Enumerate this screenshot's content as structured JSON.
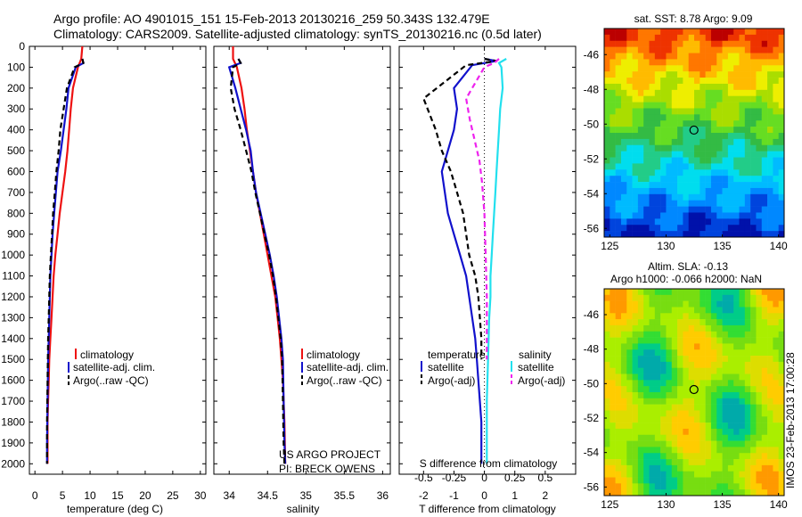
{
  "header": {
    "line1": "Argo profile: AO 4901015_151 15-Feb-2013 20130216_259 50.343S 132.479E",
    "line2": "Climatology: CARS2009. Satellite-adjusted climatology: synTS_20130216.nc (0.5d later)"
  },
  "colors": {
    "climatology": "#ee1111",
    "satellite": "#1111cc",
    "argo": "#000000",
    "sat_salinity": "#22e0ee",
    "argo_salinity": "#ee22ee"
  },
  "chart_data": [
    {
      "type": "line",
      "panel": "temperature",
      "xlabel": "temperature (deg C)",
      "xlim": [
        -1,
        31
      ],
      "xticks": [
        0,
        5,
        10,
        15,
        20,
        25,
        30
      ],
      "ylim": [
        2050,
        0
      ],
      "yticks": [
        0,
        100,
        200,
        300,
        400,
        500,
        600,
        700,
        800,
        900,
        1000,
        1100,
        1200,
        1300,
        1400,
        1500,
        1600,
        1700,
        1800,
        1900,
        2000
      ],
      "legend": [
        "climatology",
        "satellite-adj. clim.",
        "Argo(..raw -QC)"
      ],
      "series": [
        {
          "name": "climatology",
          "x": [
            8.6,
            8.4,
            7.8,
            6.9,
            6.5,
            6.2,
            5.9,
            5.5,
            5.0,
            4.5,
            4.1,
            3.7,
            3.4,
            3.2,
            3.0,
            2.8,
            2.6,
            2.5,
            2.4,
            2.3,
            2.3
          ],
          "y": [
            0,
            60,
            100,
            200,
            300,
            400,
            500,
            600,
            700,
            800,
            900,
            1000,
            1100,
            1200,
            1300,
            1400,
            1500,
            1600,
            1700,
            1800,
            2000
          ]
        },
        {
          "name": "satellite-adj. clim.",
          "x": [
            8.6,
            8.8,
            7.4,
            6.1,
            5.7,
            5.2,
            4.7,
            4.1,
            3.8,
            3.5,
            3.2,
            3.0,
            2.8,
            2.7,
            2.6,
            2.5,
            2.4,
            2.3,
            2.2,
            2.2
          ],
          "y": [
            60,
            80,
            100,
            200,
            300,
            400,
            500,
            600,
            700,
            800,
            900,
            1000,
            1100,
            1200,
            1300,
            1400,
            1500,
            1700,
            1900,
            2000
          ]
        },
        {
          "name": "Argo(..raw -QC)",
          "x": [
            8.6,
            8.8,
            7.2,
            5.8,
            5.2,
            4.6,
            4.3,
            3.9,
            3.6,
            3.3,
            3.1,
            2.9,
            2.7,
            2.6,
            2.5,
            2.4,
            2.3,
            2.2,
            2.2
          ],
          "y": [
            60,
            80,
            100,
            200,
            300,
            400,
            500,
            600,
            700,
            800,
            900,
            1000,
            1100,
            1200,
            1300,
            1400,
            1600,
            1800,
            2000
          ]
        }
      ]
    },
    {
      "type": "line",
      "panel": "salinity",
      "xlabel": "salinity",
      "xlim": [
        33.8,
        36.1
      ],
      "xticks": [
        34,
        34.5,
        35,
        35.5,
        36
      ],
      "ylim": [
        2050,
        0
      ],
      "legend": [
        "climatology",
        "satellite-adj. clim.",
        "Argo(..raw -QC)"
      ],
      "annotation": [
        "US ARGO PROJECT",
        "PI: BRECK OWENS"
      ],
      "series": [
        {
          "name": "climatology",
          "x": [
            34.05,
            34.05,
            34.1,
            34.16,
            34.2,
            34.23,
            34.27,
            34.31,
            34.35,
            34.4,
            34.45,
            34.5,
            34.55,
            34.6,
            34.63,
            34.66,
            34.68,
            34.7,
            34.71,
            34.72,
            34.73
          ],
          "y": [
            0,
            60,
            100,
            200,
            300,
            400,
            500,
            600,
            700,
            800,
            900,
            1000,
            1100,
            1200,
            1300,
            1400,
            1500,
            1600,
            1700,
            1800,
            2000
          ]
        },
        {
          "name": "satellite-adj. clim.",
          "x": [
            34.12,
            34.15,
            34.0,
            34.08,
            34.15,
            34.22,
            34.28,
            34.31,
            34.35,
            34.41,
            34.47,
            34.53,
            34.58,
            34.62,
            34.65,
            34.68,
            34.7,
            34.71,
            34.72,
            34.73
          ],
          "y": [
            60,
            80,
            100,
            200,
            300,
            400,
            500,
            600,
            700,
            800,
            900,
            1000,
            1100,
            1200,
            1300,
            1400,
            1500,
            1700,
            1900,
            2000
          ]
        },
        {
          "name": "Argo(..raw -QC)",
          "x": [
            34.12,
            34.15,
            34.05,
            34.02,
            34.07,
            34.15,
            34.22,
            34.29,
            34.34,
            34.4,
            34.46,
            34.52,
            34.57,
            34.61,
            34.64,
            34.67,
            34.69,
            34.7,
            34.71,
            34.72
          ],
          "y": [
            60,
            80,
            100,
            200,
            300,
            400,
            500,
            600,
            700,
            800,
            900,
            1000,
            1100,
            1200,
            1300,
            1400,
            1500,
            1700,
            1900,
            2000
          ]
        }
      ]
    },
    {
      "type": "line",
      "panel": "difference",
      "xlabel": "T difference from climatology",
      "xlabel_top": "S difference from climatology",
      "xlim": [
        -2.8,
        3.0
      ],
      "xticks": [
        -2,
        -1,
        0,
        1,
        2
      ],
      "xticks_s": [
        -0.5,
        -0.25,
        0,
        0.25,
        0.5
      ],
      "xticklabels_s": [
        "-0.5",
        "-0.25",
        "0",
        "0.25",
        "0.5"
      ],
      "ylim": [
        2050,
        0
      ],
      "legend_temperature": {
        "heading": "temperature",
        "items": [
          "satellite",
          "Argo(-adj)"
        ]
      },
      "legend_salinity": {
        "heading": "salinity",
        "items": [
          "satellite",
          "Argo(-adj)"
        ]
      },
      "series": [
        {
          "name": "satellite",
          "group": "temperature",
          "x": [
            0.0,
            0.4,
            -0.4,
            -1.0,
            -0.9,
            -1.0,
            -1.2,
            -1.4,
            -1.3,
            -1.2,
            -1.0,
            -0.8,
            -0.6,
            -0.5,
            -0.4,
            -0.3,
            -0.25,
            -0.2,
            -0.1,
            -0.1
          ],
          "y": [
            60,
            70,
            90,
            200,
            300,
            400,
            500,
            600,
            700,
            800,
            900,
            1000,
            1100,
            1200,
            1300,
            1400,
            1500,
            1600,
            1800,
            2000
          ]
        },
        {
          "name": "Argo(-adj)",
          "group": "temperature",
          "x": [
            0.0,
            0.4,
            -0.6,
            -2.0,
            -1.6,
            -1.4,
            -1.1,
            -0.9,
            -0.7,
            -0.6,
            -0.5,
            -0.3,
            -0.2,
            -0.15,
            -0.1,
            -0.1
          ],
          "y": [
            60,
            70,
            90,
            250,
            400,
            500,
            600,
            700,
            800,
            900,
            1000,
            1100,
            1200,
            1300,
            1400,
            1500
          ]
        },
        {
          "name": "satellite",
          "group": "salinity",
          "x": [
            0.18,
            0.12,
            0.14,
            0.15,
            0.13,
            0.12,
            0.11,
            0.1,
            0.09,
            0.08,
            0.07,
            0.06,
            0.05,
            0.05,
            0.04,
            0.03,
            0.02,
            0.02
          ],
          "y": [
            60,
            80,
            100,
            200,
            300,
            400,
            500,
            600,
            700,
            800,
            900,
            1000,
            1100,
            1200,
            1300,
            1500,
            1700,
            2000
          ]
        },
        {
          "name": "Argo(-adj)",
          "group": "salinity",
          "x": [
            0.12,
            0.08,
            0.0,
            -0.15,
            -0.12,
            -0.08,
            -0.04,
            -0.02,
            0.0,
            0.01,
            0.02,
            0.02
          ],
          "y": [
            60,
            80,
            100,
            250,
            350,
            450,
            550,
            650,
            800,
            1000,
            1200,
            1500
          ]
        }
      ]
    }
  ],
  "maps": [
    {
      "type": "heatmap",
      "title": "sat. SST: 8.78  Argo: 9.09",
      "xticks": [
        125,
        130,
        135,
        140
      ],
      "yticks": [
        -46,
        -48,
        -50,
        -52,
        -54,
        -56
      ],
      "xlim": [
        124.5,
        140.5
      ],
      "ylim": [
        -56.5,
        -44.5
      ],
      "marker": {
        "lon": 132.479,
        "lat": -50.343
      }
    },
    {
      "type": "heatmap",
      "title": "Altim. SLA: -0.13",
      "subtitle": "Argo h1000: -0.066  h2000: NaN",
      "xticks": [
        125,
        130,
        135,
        140
      ],
      "yticks": [
        -46,
        -48,
        -50,
        -52,
        -54,
        -56
      ],
      "xlim": [
        124.5,
        140.5
      ],
      "ylim": [
        -56.5,
        -44.5
      ],
      "marker": {
        "lon": 132.479,
        "lat": -50.343
      }
    }
  ],
  "side_label": "IMOS 23-Feb-2013 17:00:28"
}
